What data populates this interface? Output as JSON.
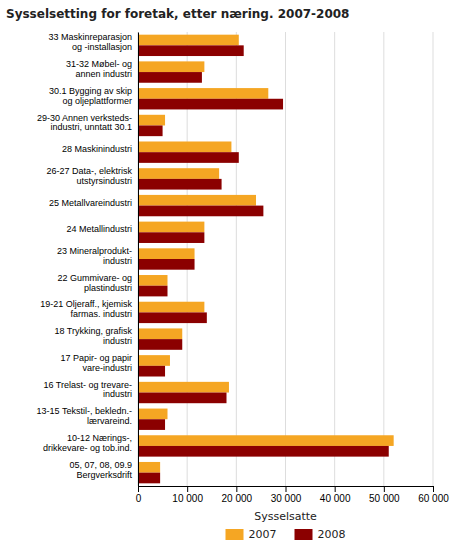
{
  "chart_data": {
    "type": "bar",
    "orientation": "horizontal",
    "title": "Sysselsetting for foretak, etter næring. 2007-2008",
    "categories": [
      "33 Maskinreparasjon\nog -installasjon",
      "31-32 Møbel- og\nannen industri",
      "30.1 Bygging av skip\nog oljeplattformer",
      "29-30 Annen verksteds-\nindustri, unntatt 30.1",
      "28 Maskinindustri",
      "26-27 Data-, elektrisk\nutstyrsindustri",
      "25 Metallvareindustri",
      "24 Metallindustri",
      "23 Mineralprodukt-\nindustri",
      "22 Gummivare- og\nplastindustri",
      "19-21 Oljeraff., kjemisk\nfarmas. industri",
      "18 Trykking, grafisk\nindustri",
      "17 Papir- og papir\nvare-industri",
      "16 Trelast- og trevare-\nindustri",
      "13-15 Tekstil-, bekledn.-\nlærvareind.",
      "10-12 Nærings-,\ndrikkevare- og tob.ind.",
      "05, 07, 08, 09.9\nBergverksdrift"
    ],
    "series": [
      {
        "name": "2007",
        "color": "#F5A623",
        "values": [
          20500,
          13500,
          26500,
          5500,
          19000,
          16500,
          24000,
          13500,
          11500,
          6000,
          13500,
          9000,
          6500,
          18500,
          6000,
          52000,
          4500
        ]
      },
      {
        "name": "2008",
        "color": "#8B0000",
        "values": [
          21500,
          13000,
          29500,
          5000,
          20500,
          17000,
          25500,
          13500,
          11500,
          6000,
          14000,
          9000,
          5500,
          18000,
          5500,
          51000,
          4500
        ]
      }
    ],
    "xlabel": "Sysselsatte",
    "xlim": [
      0,
      60000
    ],
    "xticks": [
      0,
      {
        "value": 10000,
        "label": "10 000"
      },
      {
        "value": 20000,
        "label": "20 000"
      },
      {
        "value": 30000,
        "label": "30 000"
      },
      {
        "value": 40000,
        "label": "40 000"
      },
      {
        "value": 50000,
        "label": "50 000"
      },
      {
        "value": 60000,
        "label": "60 000"
      }
    ],
    "grid": true,
    "legend": "bottom"
  }
}
